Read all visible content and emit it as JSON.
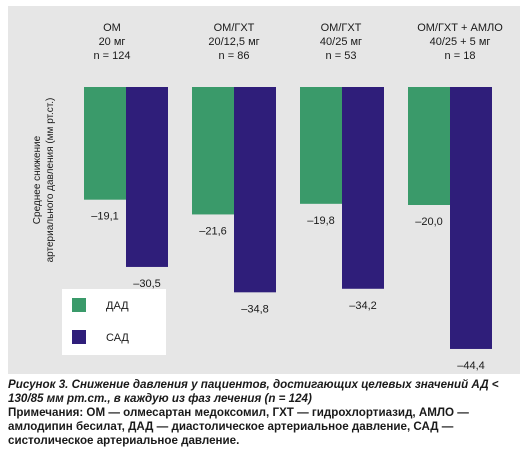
{
  "chart_data": {
    "type": "bar",
    "categories": [
      [
        "ОМ",
        "20 мг",
        "n = 124"
      ],
      [
        "ОМ/ГХТ",
        "20/12,5 мг",
        "n = 86"
      ],
      [
        "ОМ/ГХТ",
        "40/25 мг",
        "n = 53"
      ],
      [
        "ОМ/ГХТ + АМЛО",
        "40/25 + 5 мг",
        "n = 18"
      ]
    ],
    "series": [
      {
        "name": "ДАД",
        "color": "#3a9a6a",
        "values": [
          -19.1,
          -21.6,
          -19.8,
          -20.0
        ],
        "labels": [
          "–19,1",
          "–21,6",
          "–19,8",
          "–20,0"
        ]
      },
      {
        "name": "САД",
        "color": "#2f1e7a",
        "values": [
          -30.5,
          -34.8,
          -34.2,
          -44.4
        ],
        "labels": [
          "–30,5",
          "–34,8",
          "–34,2",
          "–44,4"
        ]
      }
    ],
    "ylabel": [
      "Среднее снижение",
      "артериального давления (мм рт.ст.)"
    ],
    "ylim": [
      -50,
      0
    ],
    "legend_position": "bottom-left",
    "grid": false
  },
  "caption": {
    "title": "Рисунок 3. Снижение давления у пациентов, достигающих целевых значений АД < 130/85 мм рт.ст., в каждую из фаз лечения (n = 124)",
    "notes": "Примечания: ОМ — олмесартан медоксомил, ГХТ — гидрохлортиазид, АМЛО — амлодипин бесилат, ДАД — диастолическое артериальное давление, САД — систолическое артериальное давление."
  }
}
